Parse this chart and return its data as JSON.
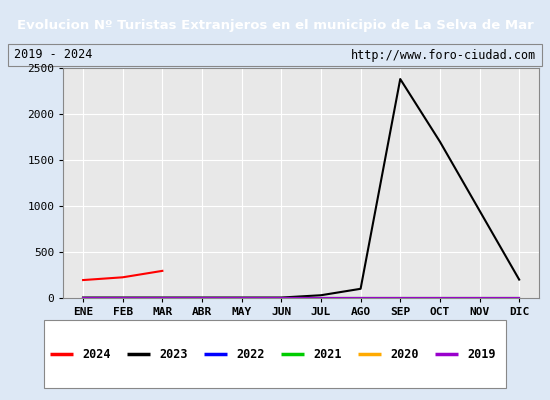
{
  "title": "Evolucion Nº Turistas Extranjeros en el municipio de La Selva de Mar",
  "subtitle_left": "2019 - 2024",
  "subtitle_right": "http://www.foro-ciudad.com",
  "title_bg_color": "#4d7ebf",
  "title_text_color": "#ffffff",
  "plot_bg_color": "#e8e8e8",
  "outer_bg_color": "#dde8f5",
  "inner_bg_color": "#ffffff",
  "months": [
    "ENE",
    "FEB",
    "MAR",
    "ABR",
    "MAY",
    "JUN",
    "JUL",
    "AGO",
    "SEP",
    "OCT",
    "NOV",
    "DIC"
  ],
  "series": {
    "2024": {
      "color": "#ff0000",
      "data": [
        195,
        225,
        295,
        null,
        null,
        null,
        null,
        null,
        null,
        null,
        null,
        null
      ]
    },
    "2023": {
      "color": "#000000",
      "data": [
        5,
        5,
        5,
        5,
        5,
        5,
        30,
        100,
        2380,
        1700,
        950,
        200
      ]
    },
    "2022": {
      "color": "#0000ff",
      "data": [
        2,
        2,
        2,
        2,
        2,
        2,
        2,
        2,
        2,
        2,
        2,
        2
      ]
    },
    "2021": {
      "color": "#00cc00",
      "data": [
        2,
        2,
        2,
        2,
        2,
        2,
        2,
        2,
        2,
        2,
        2,
        2
      ]
    },
    "2020": {
      "color": "#ffaa00",
      "data": [
        2,
        2,
        2,
        2,
        2,
        2,
        2,
        2,
        2,
        2,
        2,
        2
      ]
    },
    "2019": {
      "color": "#9900cc",
      "data": [
        2,
        2,
        2,
        2,
        2,
        2,
        2,
        2,
        2,
        2,
        2,
        2
      ]
    }
  },
  "ylim": [
    0,
    2500
  ],
  "yticks": [
    0,
    500,
    1000,
    1500,
    2000,
    2500
  ],
  "legend_order": [
    "2024",
    "2023",
    "2022",
    "2021",
    "2020",
    "2019"
  ],
  "outer_border_color": "#4d7ebf",
  "grid_color": "#ffffff"
}
